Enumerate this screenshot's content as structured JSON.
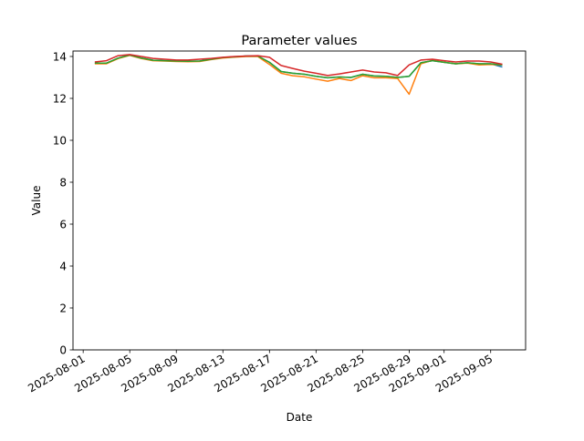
{
  "chart_data": {
    "type": "line",
    "title": "Parameter values",
    "xlabel": "Date",
    "ylabel": "Value",
    "ylim": [
      0,
      14.26
    ],
    "xlim": [
      "2025-07-31T03:00",
      "2025-09-08T00:00"
    ],
    "grid": false,
    "yticks": [
      0,
      2,
      4,
      6,
      8,
      10,
      12,
      14
    ],
    "xticks": [
      "2025-08-01",
      "2025-08-05",
      "2025-08-09",
      "2025-08-13",
      "2025-08-17",
      "2025-08-21",
      "2025-08-25",
      "2025-08-29",
      "2025-09-01",
      "2025-09-05"
    ],
    "x_start": "2025-08-02",
    "x_step_days": 1,
    "series": [
      {
        "color": "#1f77b4",
        "values": [
          13.68,
          13.68,
          13.92,
          14.07,
          13.92,
          13.82,
          13.8,
          13.78,
          13.77,
          13.78,
          13.87,
          13.95,
          13.98,
          14.02,
          14.02,
          13.72,
          13.28,
          13.2,
          13.15,
          13.05,
          12.98,
          13.02,
          13.0,
          13.15,
          13.07,
          13.05,
          13.0,
          13.05,
          13.7,
          13.8,
          13.72,
          13.65,
          13.7,
          13.65,
          13.65,
          13.5
        ]
      },
      {
        "color": "#ff7f0e",
        "values": [
          13.65,
          13.65,
          13.9,
          14.05,
          13.9,
          13.8,
          13.78,
          13.76,
          13.75,
          13.76,
          13.85,
          13.93,
          13.97,
          14.0,
          14.0,
          13.62,
          13.2,
          13.08,
          13.03,
          12.92,
          12.82,
          12.95,
          12.85,
          13.08,
          12.98,
          12.98,
          12.95,
          12.2,
          13.65,
          13.82,
          13.72,
          13.65,
          13.68,
          13.6,
          13.62,
          13.6
        ]
      },
      {
        "color": "#2ca02c",
        "values": [
          13.68,
          13.68,
          13.92,
          14.07,
          13.92,
          13.82,
          13.8,
          13.78,
          13.77,
          13.78,
          13.87,
          13.95,
          13.98,
          14.02,
          14.02,
          13.72,
          13.28,
          13.2,
          13.15,
          13.05,
          12.98,
          13.02,
          13.0,
          13.15,
          13.07,
          13.05,
          13.0,
          13.05,
          13.7,
          13.8,
          13.72,
          13.65,
          13.7,
          13.65,
          13.65,
          13.6
        ]
      },
      {
        "color": "#d62728",
        "values": [
          13.74,
          13.8,
          14.04,
          14.09,
          14.0,
          13.91,
          13.87,
          13.83,
          13.83,
          13.87,
          13.91,
          13.96,
          14.0,
          14.02,
          14.04,
          13.96,
          13.57,
          13.43,
          13.3,
          13.2,
          13.09,
          13.17,
          13.26,
          13.35,
          13.26,
          13.22,
          13.09,
          13.6,
          13.83,
          13.87,
          13.8,
          13.74,
          13.78,
          13.78,
          13.74,
          13.63
        ]
      }
    ]
  }
}
